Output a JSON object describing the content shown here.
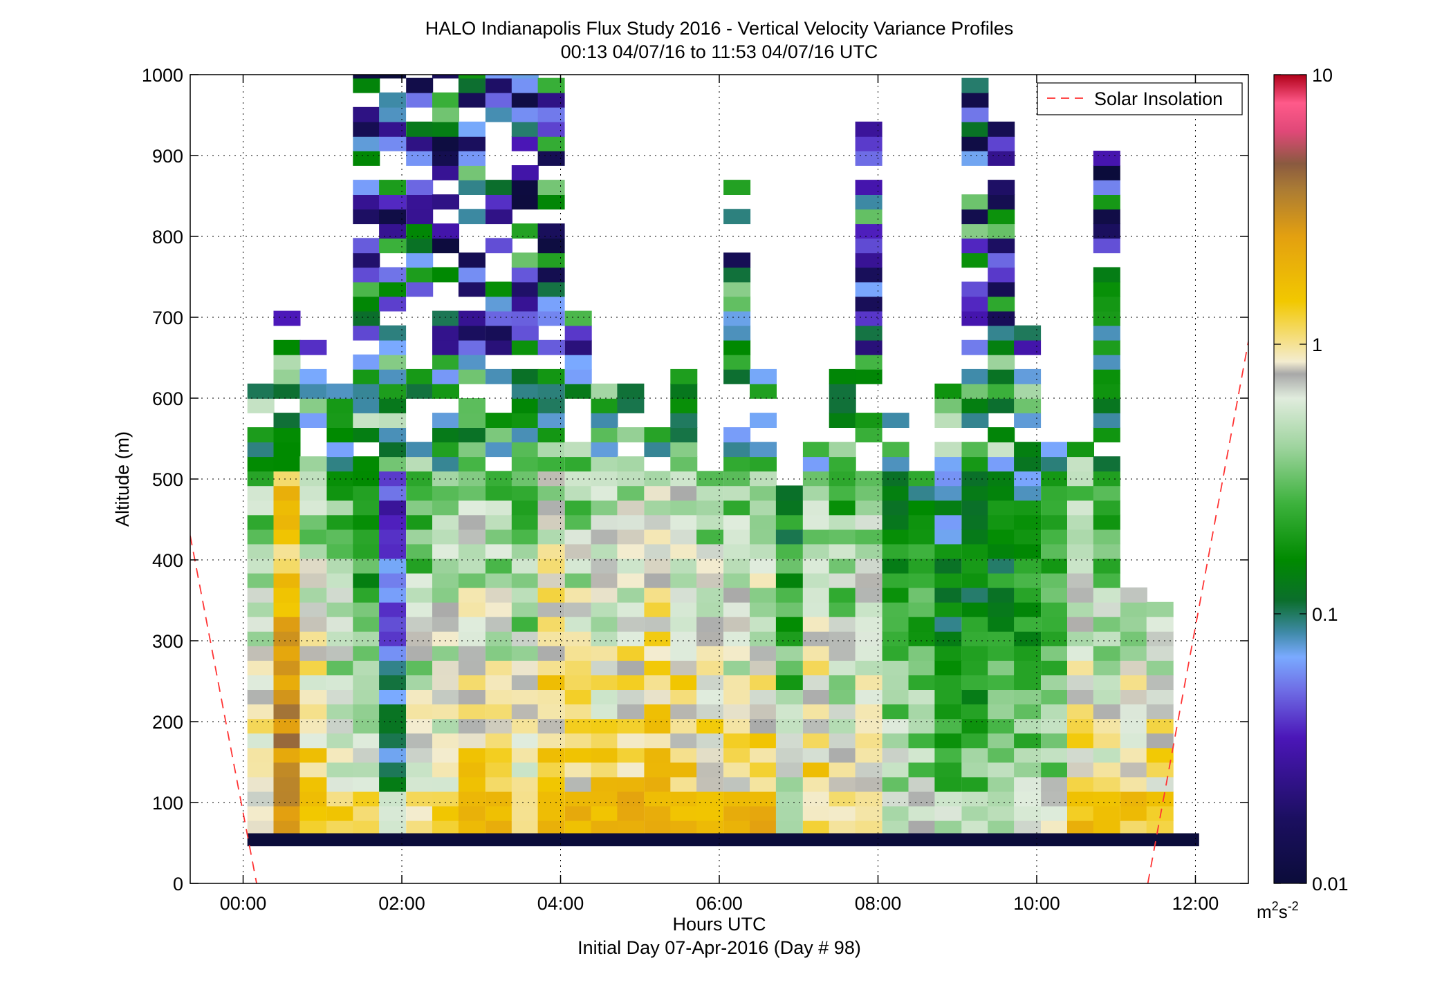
{
  "chart_data": {
    "type": "heatmap",
    "title": "HALO Indianapolis Flux Study 2016 - Vertical Velocity Variance Profiles",
    "subtitle": "00:13 04/07/16 to 11:53 04/07/16  UTC",
    "xlabel": "Hours UTC",
    "xlabel2": "Initial Day 07-Apr-2016 (Day # 98)",
    "ylabel": "Altitude (m)",
    "xlim_hours": [
      -0.667,
      12.667
    ],
    "ylim": [
      0,
      1000
    ],
    "x_ticks": [
      {
        "value": 0,
        "label": "00:00"
      },
      {
        "value": 2,
        "label": "02:00"
      },
      {
        "value": 4,
        "label": "04:00"
      },
      {
        "value": 6,
        "label": "06:00"
      },
      {
        "value": 8,
        "label": "08:00"
      },
      {
        "value": 10,
        "label": "10:00"
      },
      {
        "value": 12,
        "label": "12:00"
      }
    ],
    "y_ticks": [
      0,
      100,
      200,
      300,
      400,
      500,
      600,
      700,
      800,
      900,
      1000
    ],
    "grid": true,
    "legend": {
      "label": "Solar Insolation",
      "placement": "top-right",
      "color": "#ff3333",
      "style": "dashed"
    },
    "colorbar": {
      "scale": "log",
      "range": [
        0.01,
        10
      ],
      "tick_labels": [
        "0.01",
        "0.1",
        "1",
        "10"
      ],
      "unit_base": "m",
      "unit_exp1": "2",
      "unit_mid": "s",
      "unit_exp2": "-2"
    },
    "time_resolution_hours": 0.333,
    "altitude_resolution_m": 18,
    "profiles": [
      {
        "t": 0.22,
        "top": 610,
        "ground": 0.45,
        "mid": 0.6
      },
      {
        "t": 0.55,
        "top": 700,
        "ground": 1.5,
        "mid": 2.0
      },
      {
        "t": 0.88,
        "top": 660,
        "ground": 0.8,
        "mid": 0.7
      },
      {
        "t": 1.22,
        "top": 610,
        "ground": 0.7,
        "mid": 0.5
      },
      {
        "t": 1.55,
        "top": 1000,
        "ground": 0.6,
        "mid": 0.3
      },
      {
        "t": 1.88,
        "top": 1000,
        "ground": 0.35,
        "mid": 0.08
      },
      {
        "t": 2.22,
        "top": 1000,
        "ground": 0.6,
        "mid": 0.5
      },
      {
        "t": 2.55,
        "top": 1000,
        "ground": 0.7,
        "mid": 0.55
      },
      {
        "t": 2.88,
        "top": 1000,
        "ground": 0.9,
        "mid": 0.7
      },
      {
        "t": 3.22,
        "top": 1000,
        "ground": 0.9,
        "mid": 0.6
      },
      {
        "t": 3.55,
        "top": 1000,
        "ground": 0.5,
        "mid": 0.5
      },
      {
        "t": 3.88,
        "top": 990,
        "ground": 1.0,
        "mid": 0.9
      },
      {
        "t": 4.22,
        "top": 700,
        "ground": 1.0,
        "mid": 0.7
      },
      {
        "t": 4.55,
        "top": 640,
        "ground": 0.9,
        "mid": 0.7
      },
      {
        "t": 4.88,
        "top": 610,
        "ground": 1.0,
        "mid": 0.8
      },
      {
        "t": 5.22,
        "top": 560,
        "ground": 1.0,
        "mid": 0.9
      },
      {
        "t": 5.55,
        "top": 620,
        "ground": 1.0,
        "mid": 0.8
      },
      {
        "t": 5.88,
        "top": 500,
        "ground": 0.8,
        "mid": 0.7
      },
      {
        "t": 6.22,
        "top": 870,
        "ground": 0.9,
        "mid": 0.6
      },
      {
        "t": 6.55,
        "top": 620,
        "ground": 1.1,
        "mid": 0.7
      },
      {
        "t": 6.88,
        "top": 490,
        "ground": 0.3,
        "mid": 0.3
      },
      {
        "t": 7.22,
        "top": 540,
        "ground": 0.6,
        "mid": 0.7
      },
      {
        "t": 7.55,
        "top": 620,
        "ground": 0.5,
        "mid": 0.5
      },
      {
        "t": 7.88,
        "top": 940,
        "ground": 0.6,
        "mid": 0.6
      },
      {
        "t": 8.22,
        "top": 570,
        "ground": 0.3,
        "mid": 0.3
      },
      {
        "t": 8.55,
        "top": 510,
        "ground": 0.4,
        "mid": 0.3
      },
      {
        "t": 8.88,
        "top": 610,
        "ground": 0.3,
        "mid": 0.2
      },
      {
        "t": 9.22,
        "top": 990,
        "ground": 0.25,
        "mid": 0.2
      },
      {
        "t": 9.55,
        "top": 950,
        "ground": 0.3,
        "mid": 0.25
      },
      {
        "t": 9.88,
        "top": 690,
        "ground": 0.3,
        "mid": 0.25
      },
      {
        "t": 10.22,
        "top": 540,
        "ground": 0.4,
        "mid": 0.3
      },
      {
        "t": 10.55,
        "top": 530,
        "ground": 0.9,
        "mid": 0.7
      },
      {
        "t": 10.88,
        "top": 900,
        "ground": 0.9,
        "mid": 0.5
      },
      {
        "t": 11.22,
        "top": 360,
        "ground": 0.8,
        "mid": 0.6
      },
      {
        "t": 11.55,
        "top": 340,
        "ground": 0.8,
        "mid": 0.6
      }
    ]
  }
}
